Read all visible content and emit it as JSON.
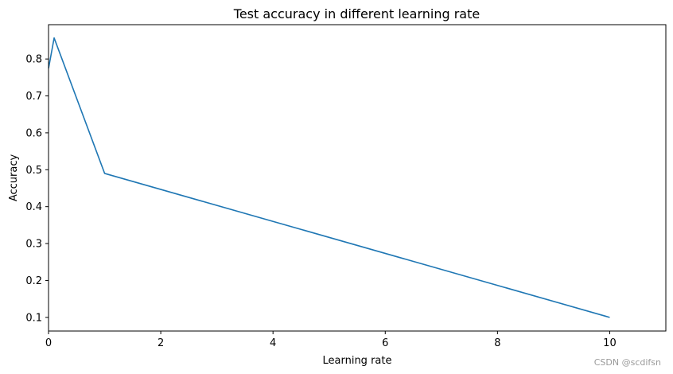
{
  "chart_data": {
    "type": "line",
    "title": "Test accuracy in different learning rate",
    "xlabel": "Learning rate",
    "ylabel": "Accuracy",
    "xlim": [
      0,
      11
    ],
    "ylim": [
      0.063,
      0.893
    ],
    "xticks": [
      0,
      2,
      4,
      6,
      8,
      10
    ],
    "yticks": [
      0.1,
      0.2,
      0.3,
      0.4,
      0.5,
      0.6,
      0.7,
      0.8
    ],
    "grid": false,
    "series": [
      {
        "color": "#1f77b4",
        "x": [
          0.001,
          0.1,
          1,
          10
        ],
        "y": [
          0.775,
          0.857,
          0.49,
          0.1
        ]
      }
    ]
  },
  "watermark": "CSDN @scdifsn"
}
